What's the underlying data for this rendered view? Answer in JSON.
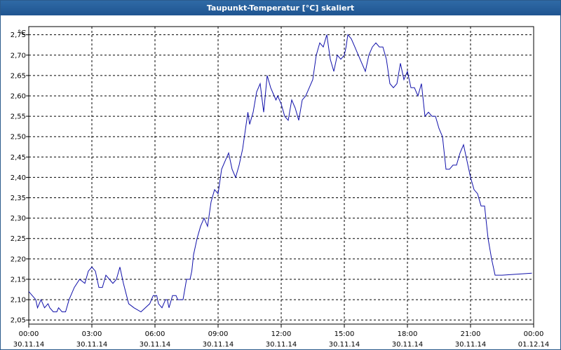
{
  "window": {
    "title": "Taupunkt-Temperatur [°C] skaliert"
  },
  "chart_data": {
    "type": "line",
    "ylabel": "°C",
    "ylim": [
      2.04,
      2.77
    ],
    "yticks": [
      "2,05",
      "2,10",
      "2,15",
      "2,20",
      "2,25",
      "2,30",
      "2,35",
      "2,40",
      "2,45",
      "2,50",
      "2,55",
      "2,60",
      "2,65",
      "2,70",
      "2,75"
    ],
    "xticks": [
      {
        "time": "00:00",
        "date": "30.11.14"
      },
      {
        "time": "03:00",
        "date": "30.11.14"
      },
      {
        "time": "06:00",
        "date": "30.11.14"
      },
      {
        "time": "09:00",
        "date": "30.11.14"
      },
      {
        "time": "12:00",
        "date": "30.11.14"
      },
      {
        "time": "15:00",
        "date": "30.11.14"
      },
      {
        "time": "18:00",
        "date": "30.11.14"
      },
      {
        "time": "21:00",
        "date": "30.11.14"
      },
      {
        "time": "00:00",
        "date": "01.12.14"
      }
    ],
    "grid": true,
    "series_color": "#1010aa",
    "series": [
      {
        "x": [
          "00:00",
          "00:20",
          "00:25",
          "00:35",
          "00:45",
          "00:55",
          "01:00",
          "01:10",
          "01:20",
          "01:25",
          "01:35",
          "01:45",
          "01:55",
          "02:10",
          "02:25",
          "02:40",
          "02:50",
          "03:00",
          "03:10",
          "03:20",
          "03:30",
          "03:40",
          "03:50",
          "04:00",
          "04:10",
          "04:20",
          "04:30",
          "04:45",
          "05:00",
          "05:20",
          "05:45",
          "05:55",
          "06:05",
          "06:10",
          "06:20",
          "06:30",
          "06:35",
          "06:40",
          "06:50",
          "07:00",
          "07:05",
          "07:10",
          "07:20",
          "07:30",
          "07:40",
          "07:45",
          "07:50",
          "08:00",
          "08:10",
          "08:20",
          "08:30",
          "08:40",
          "08:50",
          "09:00",
          "09:10",
          "09:20",
          "09:30",
          "09:35",
          "09:40",
          "09:50",
          "10:00",
          "10:10",
          "10:15",
          "10:25",
          "10:30",
          "10:40",
          "10:50",
          "11:00",
          "11:10",
          "11:20",
          "11:30",
          "11:40",
          "11:45",
          "11:50",
          "12:00",
          "12:10",
          "12:20",
          "12:30",
          "12:40",
          "12:50",
          "13:00",
          "13:10",
          "13:20",
          "13:30",
          "13:40",
          "13:50",
          "14:00",
          "14:10",
          "14:20",
          "14:30",
          "14:40",
          "14:50",
          "15:00",
          "15:05",
          "15:10",
          "15:20",
          "15:30",
          "15:40",
          "15:50",
          "16:00",
          "16:10",
          "16:20",
          "16:30",
          "16:40",
          "16:50",
          "17:00",
          "17:10",
          "17:20",
          "17:30",
          "17:40",
          "17:50",
          "18:00",
          "18:10",
          "18:20",
          "18:30",
          "18:40",
          "18:50",
          "19:00",
          "19:10",
          "19:20",
          "19:30",
          "19:40",
          "19:50",
          "20:00",
          "20:10",
          "20:20",
          "20:30",
          "20:40",
          "20:50",
          "21:00",
          "21:10",
          "21:20",
          "21:30",
          "21:40",
          "21:50",
          "22:00",
          "22:10",
          "22:20",
          "22:30",
          "22:40",
          "22:50",
          "23:00",
          "23:10",
          "23:20",
          "23:30",
          "23:40",
          "23:50",
          "23:55"
        ],
        "values": [
          2.12,
          2.1,
          2.08,
          2.1,
          2.08,
          2.09,
          2.08,
          2.07,
          2.07,
          2.08,
          2.07,
          2.07,
          2.1,
          2.13,
          2.15,
          2.14,
          2.17,
          2.18,
          2.17,
          2.13,
          2.13,
          2.16,
          2.15,
          2.14,
          2.15,
          2.18,
          2.14,
          2.09,
          2.08,
          2.07,
          2.09,
          2.11,
          2.11,
          2.09,
          2.08,
          2.1,
          2.1,
          2.08,
          2.11,
          2.11,
          2.1,
          2.1,
          2.1,
          2.15,
          2.15,
          2.17,
          2.21,
          2.25,
          2.28,
          2.3,
          2.28,
          2.34,
          2.37,
          2.36,
          2.42,
          2.44,
          2.46,
          2.44,
          2.42,
          2.4,
          2.43,
          2.47,
          2.5,
          2.56,
          2.53,
          2.56,
          2.61,
          2.63,
          2.56,
          2.65,
          2.62,
          2.6,
          2.59,
          2.6,
          2.58,
          2.55,
          2.54,
          2.59,
          2.57,
          2.54,
          2.59,
          2.6,
          2.62,
          2.64,
          2.7,
          2.73,
          2.72,
          2.75,
          2.69,
          2.66,
          2.7,
          2.69,
          2.7,
          2.72,
          2.75,
          2.74,
          2.72,
          2.7,
          2.68,
          2.66,
          2.7,
          2.72,
          2.73,
          2.72,
          2.72,
          2.69,
          2.63,
          2.62,
          2.63,
          2.68,
          2.64,
          2.66,
          2.62,
          2.62,
          2.6,
          2.63,
          2.55,
          2.56,
          2.55,
          2.55,
          2.52,
          2.5,
          2.42,
          2.42,
          2.43,
          2.43,
          2.46,
          2.48,
          2.44,
          2.4,
          2.37,
          2.36,
          2.33,
          2.33,
          2.25,
          2.2,
          2.16,
          2.16,
          2.16,
          2.16,
          2.16,
          2.16,
          2.16,
          2.16,
          2.16,
          2.16,
          2.16,
          2.16
        ]
      }
    ]
  }
}
